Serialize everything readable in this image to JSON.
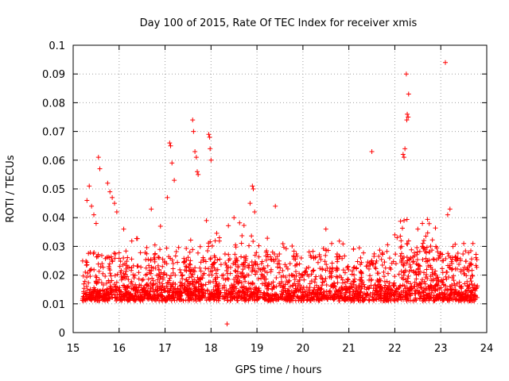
{
  "chart_data": {
    "type": "scatter",
    "title": "Day 100 of 2015, Rate Of TEC Index for receiver xmis",
    "xlabel": "GPS time / hours",
    "ylabel": "ROTI / TECUs",
    "xlim": [
      15,
      24
    ],
    "ylim": [
      0,
      0.1
    ],
    "xticks": [
      15,
      16,
      17,
      18,
      19,
      20,
      21,
      22,
      23,
      24
    ],
    "yticks": [
      0,
      0.01,
      0.02,
      0.03,
      0.04,
      0.05,
      0.06,
      0.07,
      0.08,
      0.09,
      0.1
    ],
    "xtick_labels": [
      "15",
      "16",
      "17",
      "18",
      "19",
      "20",
      "21",
      "22",
      "23",
      "24"
    ],
    "ytick_labels": [
      "0",
      "0.01",
      "0.02",
      "0.03",
      "0.04",
      "0.05",
      "0.06",
      "0.07",
      "0.08",
      "0.09",
      "0.1"
    ],
    "grid": true,
    "marker": "+",
    "color": "#ff0000",
    "x_range_of_data": [
      15.2,
      23.8
    ],
    "series": [
      {
        "name": "ROTI",
        "points": [
          [
            15.55,
            0.061
          ],
          [
            15.58,
            0.057
          ],
          [
            15.3,
            0.046
          ],
          [
            15.35,
            0.051
          ],
          [
            15.4,
            0.044
          ],
          [
            15.45,
            0.041
          ],
          [
            15.5,
            0.038
          ],
          [
            15.75,
            0.052
          ],
          [
            15.8,
            0.049
          ],
          [
            15.85,
            0.047
          ],
          [
            15.9,
            0.045
          ],
          [
            15.95,
            0.042
          ],
          [
            16.1,
            0.036
          ],
          [
            16.7,
            0.043
          ],
          [
            16.9,
            0.037
          ],
          [
            17.05,
            0.047
          ],
          [
            17.1,
            0.066
          ],
          [
            17.12,
            0.065
          ],
          [
            17.15,
            0.059
          ],
          [
            17.2,
            0.053
          ],
          [
            17.6,
            0.074
          ],
          [
            17.62,
            0.07
          ],
          [
            17.65,
            0.063
          ],
          [
            17.68,
            0.061
          ],
          [
            17.7,
            0.056
          ],
          [
            17.72,
            0.055
          ],
          [
            17.95,
            0.069
          ],
          [
            17.97,
            0.068
          ],
          [
            17.98,
            0.064
          ],
          [
            18.0,
            0.06
          ],
          [
            17.9,
            0.039
          ],
          [
            18.5,
            0.04
          ],
          [
            18.9,
            0.051
          ],
          [
            18.92,
            0.05
          ],
          [
            18.85,
            0.045
          ],
          [
            18.95,
            0.042
          ],
          [
            19.4,
            0.044
          ],
          [
            20.5,
            0.036
          ],
          [
            21.5,
            0.063
          ],
          [
            21.1,
            0.029
          ],
          [
            22.18,
            0.062
          ],
          [
            22.2,
            0.061
          ],
          [
            22.22,
            0.064
          ],
          [
            22.25,
            0.09
          ],
          [
            22.3,
            0.083
          ],
          [
            22.27,
            0.076
          ],
          [
            22.29,
            0.075
          ],
          [
            22.26,
            0.074
          ],
          [
            22.2,
            0.039
          ],
          [
            22.6,
            0.038
          ],
          [
            23.1,
            0.094
          ],
          [
            23.2,
            0.043
          ],
          [
            23.15,
            0.041
          ],
          [
            23.7,
            0.031
          ],
          [
            22.0,
            0.034
          ],
          [
            22.5,
            0.036
          ],
          [
            22.05,
            0.033
          ],
          [
            23.5,
            0.031
          ],
          [
            18.35,
            0.003
          ]
        ]
      }
    ]
  }
}
